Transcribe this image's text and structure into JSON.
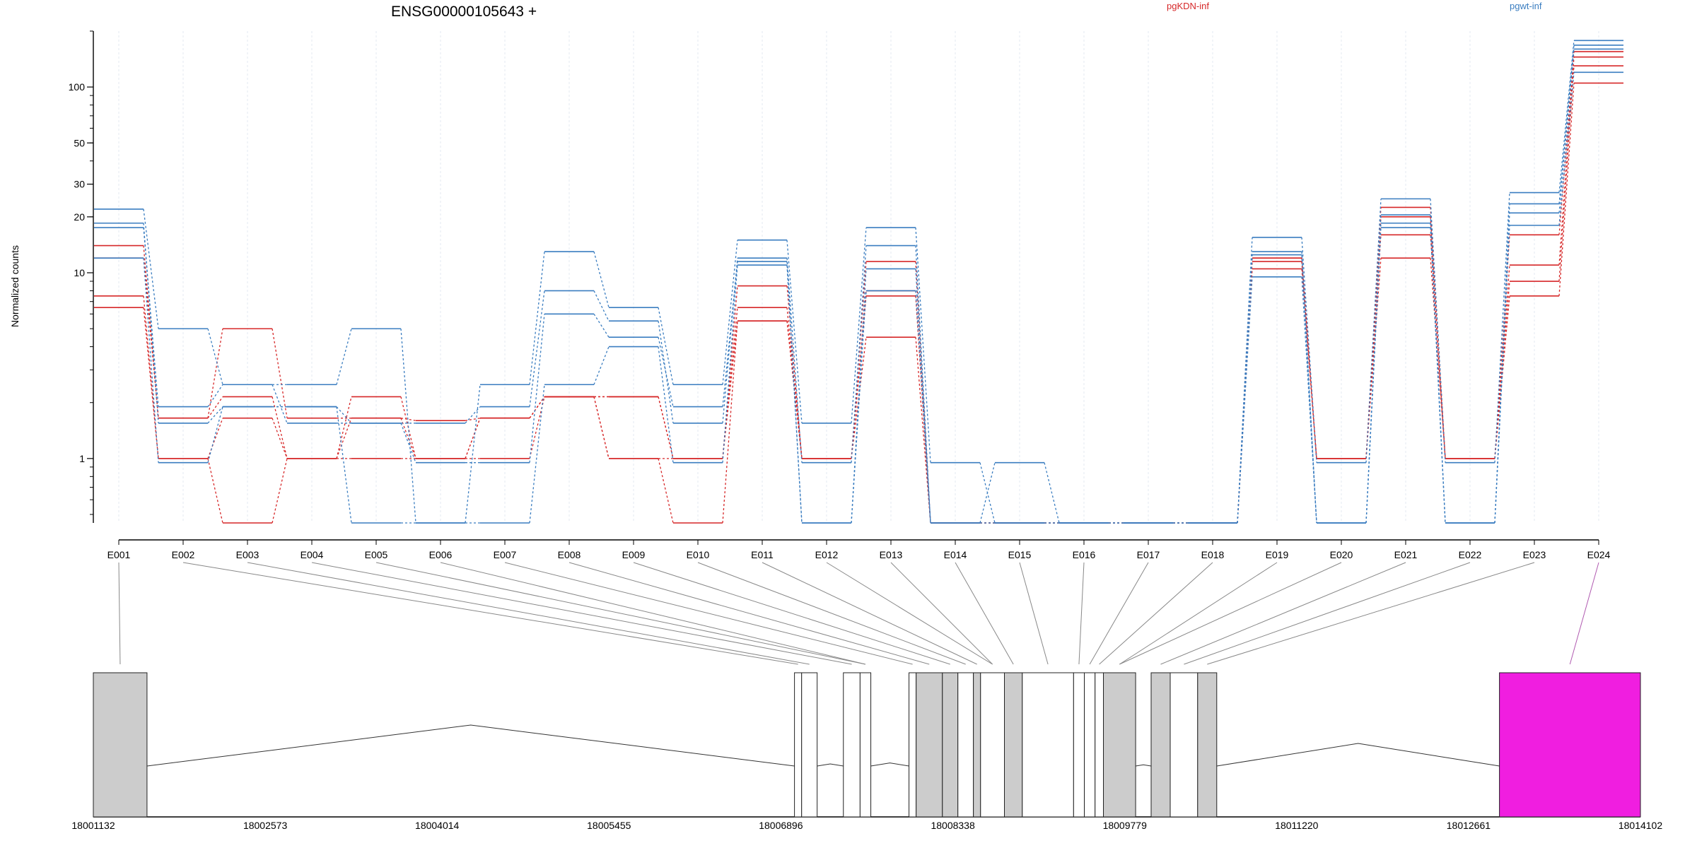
{
  "chart_data": {
    "type": "line",
    "title": "ENSG00000105643 +",
    "ylabel": "Normalized counts",
    "yscale": "log",
    "yticks": [
      1,
      10,
      20,
      30,
      50,
      100
    ],
    "ylim": [
      0.45,
      200
    ],
    "categories": [
      "E001",
      "E002",
      "E003",
      "E004",
      "E005",
      "E006",
      "E007",
      "E008",
      "E009",
      "E010",
      "E011",
      "E012",
      "E013",
      "E014",
      "E015",
      "E016",
      "E017",
      "E018",
      "E019",
      "E020",
      "E021",
      "E022",
      "E023",
      "E024"
    ],
    "legend": [
      {
        "name": "pgKDN-inf",
        "color": "#d62728"
      },
      {
        "name": "pgwt-inf",
        "color": "#3a7dc0"
      }
    ],
    "series": [
      {
        "group": "pgKDN-inf",
        "values": [
          14,
          1.65,
          5,
          1.65,
          1.65,
          1.6,
          1.65,
          2.15,
          2.15,
          1.0,
          8.5,
          1.0,
          11.5,
          0.45,
          0.45,
          0.45,
          0.45,
          0.45,
          11.5,
          1.0,
          22.5,
          1.0,
          16,
          155
        ]
      },
      {
        "group": "pgKDN-inf",
        "values": [
          12,
          1.65,
          2.15,
          1.0,
          1.65,
          1.0,
          1.65,
          2.15,
          2.15,
          1.0,
          6.5,
          1.0,
          8,
          0.45,
          0.45,
          0.45,
          0.45,
          0.45,
          10.5,
          1.0,
          20,
          1.0,
          11,
          145
        ]
      },
      {
        "group": "pgKDN-inf",
        "values": [
          7.5,
          1.0,
          1.65,
          1.0,
          1.0,
          1.0,
          1.0,
          2.15,
          1.0,
          1.0,
          5.5,
          1.0,
          7.5,
          0.45,
          0.45,
          0.45,
          0.45,
          0.45,
          12,
          1.0,
          16,
          1.0,
          9,
          130
        ]
      },
      {
        "group": "pgKDN-inf",
        "values": [
          6.5,
          1.0,
          0.45,
          1.0,
          2.15,
          1.0,
          1.65,
          2.15,
          1.0,
          0.45,
          5.5,
          1.0,
          4.5,
          0.45,
          0.45,
          0.45,
          0.45,
          0.45,
          12,
          1.0,
          12,
          1.0,
          7.5,
          105
        ]
      },
      {
        "group": "pgwt-inf",
        "values": [
          22,
          5,
          2.5,
          2.5,
          5,
          0.45,
          2.5,
          13,
          6.5,
          2.5,
          15,
          1.55,
          17.5,
          0.95,
          0.45,
          0.45,
          0.45,
          0.45,
          15.5,
          0.95,
          25,
          0.95,
          27,
          178
        ]
      },
      {
        "group": "pgwt-inf",
        "values": [
          18.5,
          1.55,
          1.9,
          1.9,
          1.55,
          1.55,
          1.9,
          8,
          5.5,
          1.55,
          12,
          0.95,
          14,
          0.45,
          0.95,
          0.45,
          0.45,
          0.45,
          13,
          0.45,
          20.5,
          0.45,
          23.5,
          168
        ]
      },
      {
        "group": "pgwt-inf",
        "values": [
          17.5,
          1.9,
          2.5,
          1.55,
          1.55,
          0.95,
          0.95,
          6,
          4.5,
          1.9,
          11.5,
          0.45,
          10.5,
          0.45,
          0.45,
          0.45,
          0.45,
          0.45,
          12.5,
          0.45,
          18.5,
          0.45,
          21,
          160
        ]
      },
      {
        "group": "pgwt-inf",
        "values": [
          12,
          0.95,
          1.9,
          1.9,
          0.45,
          0.45,
          0.45,
          2.5,
          4,
          0.95,
          11,
          0.45,
          8,
          0.45,
          0.45,
          0.45,
          0.45,
          0.45,
          9.5,
          0.45,
          17.5,
          0.45,
          18,
          120
        ]
      }
    ],
    "gene_model": {
      "coordinate_ticks": [
        "18001132",
        "18002573",
        "18004014",
        "18005455",
        "18006896",
        "18008338",
        "18009779",
        "18011220",
        "18012661",
        "18014102"
      ],
      "coordinate_range": [
        18001132,
        18014102
      ],
      "exons": [
        {
          "start": 18001132,
          "end": 18001582,
          "fill": "#cccccc"
        },
        {
          "start": 18007010,
          "end": 18007070,
          "fill": "#ffffff"
        },
        {
          "start": 18007070,
          "end": 18007200,
          "fill": "#ffffff"
        },
        {
          "start": 18007420,
          "end": 18007560,
          "fill": "#ffffff"
        },
        {
          "start": 18007560,
          "end": 18007650,
          "fill": "#ffffff"
        },
        {
          "start": 18007970,
          "end": 18008030,
          "fill": "#ffffff"
        },
        {
          "start": 18008030,
          "end": 18008250,
          "fill": "#cccccc"
        },
        {
          "start": 18008250,
          "end": 18008380,
          "fill": "#cccccc"
        },
        {
          "start": 18008380,
          "end": 18008510,
          "fill": "#ffffff"
        },
        {
          "start": 18008510,
          "end": 18008570,
          "fill": "#cccccc"
        },
        {
          "start": 18008570,
          "end": 18008770,
          "fill": "#ffffff"
        },
        {
          "start": 18008770,
          "end": 18008920,
          "fill": "#cccccc"
        },
        {
          "start": 18008920,
          "end": 18009350,
          "fill": "#ffffff"
        },
        {
          "start": 18009350,
          "end": 18009440,
          "fill": "#ffffff"
        },
        {
          "start": 18009440,
          "end": 18009530,
          "fill": "#ffffff"
        },
        {
          "start": 18009530,
          "end": 18009600,
          "fill": "#ffffff"
        },
        {
          "start": 18009600,
          "end": 18009870,
          "fill": "#cccccc"
        },
        {
          "start": 18010000,
          "end": 18010160,
          "fill": "#cccccc"
        },
        {
          "start": 18010160,
          "end": 18010390,
          "fill": "#ffffff"
        },
        {
          "start": 18010390,
          "end": 18010550,
          "fill": "#cccccc"
        },
        {
          "start": 18012920,
          "end": 18014102,
          "fill": "#f01ee0"
        }
      ],
      "highlight_connector_color": "#b05ab0"
    }
  }
}
